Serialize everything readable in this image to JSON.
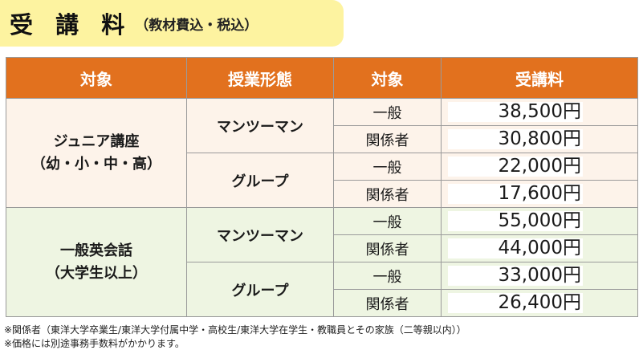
{
  "title": {
    "main": "受 講 料",
    "sub": "（教材費込・税込）"
  },
  "table": {
    "headers": [
      "対象",
      "授業形態",
      "対象",
      "受講料"
    ],
    "groups": [
      {
        "audience_line1": "ジュニア講座",
        "audience_line2": "（幼・小・中・高）",
        "formats": [
          {
            "label": "マンツーマン",
            "rows": [
              {
                "rel": "一般",
                "price": "38,500円"
              },
              {
                "rel": "関係者",
                "price": "30,800円"
              }
            ]
          },
          {
            "label": "グループ",
            "rows": [
              {
                "rel": "一般",
                "price": "22,000円"
              },
              {
                "rel": "関係者",
                "price": "17,600円"
              }
            ]
          }
        ]
      },
      {
        "audience_line1": "一般英会話",
        "audience_line2": "（大学生以上）",
        "formats": [
          {
            "label": "マンツーマン",
            "rows": [
              {
                "rel": "一般",
                "price": "55,000円"
              },
              {
                "rel": "関係者",
                "price": "44,000円"
              }
            ]
          },
          {
            "label": "グループ",
            "rows": [
              {
                "rel": "一般",
                "price": "33,000円"
              },
              {
                "rel": "関係者",
                "price": "26,400円"
              }
            ]
          }
        ]
      }
    ]
  },
  "notes": [
    "※関係者（東洋大学卒業生/東洋大学付属中学・高校生/東洋大学在学生・教職員とその家族（二等親以内））",
    "※価格には別途事務手数料がかかります。"
  ],
  "colors": {
    "header_bg": "#e2711e",
    "group1_bg": "#fdf3ea",
    "group2_bg": "#eef5e2",
    "title_bg": "#fdf3a0"
  }
}
